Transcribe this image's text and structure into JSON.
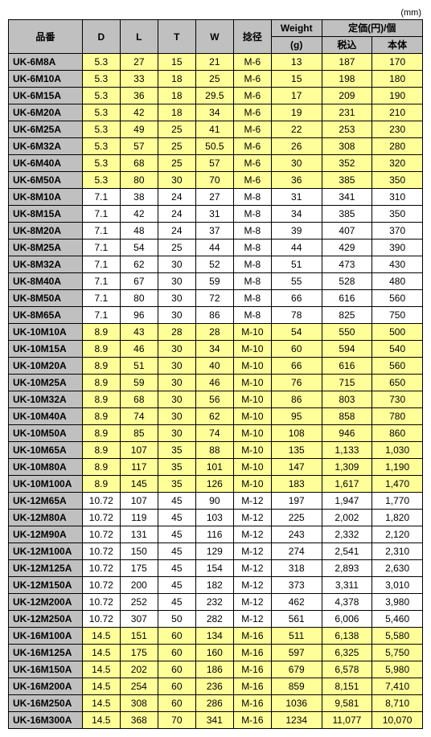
{
  "unit_label": "(mm)",
  "headers": {
    "part_no": "品番",
    "D": "D",
    "L": "L",
    "T": "T",
    "W": "W",
    "neji": "捻径",
    "weight_top": "Weight",
    "weight_bot": "(g)",
    "price_top": "定価(円)/個",
    "price_tax": "税込",
    "price_body": "本体"
  },
  "rows": [
    {
      "pn": "UK-6M8A",
      "d": "5.3",
      "l": "27",
      "t": "15",
      "w": "21",
      "nt": "M-6",
      "wg": "13",
      "p1": "187",
      "p2": "170",
      "band": "y"
    },
    {
      "pn": "UK-6M10A",
      "d": "5.3",
      "l": "33",
      "t": "18",
      "w": "25",
      "nt": "M-6",
      "wg": "15",
      "p1": "198",
      "p2": "180",
      "band": "y"
    },
    {
      "pn": "UK-6M15A",
      "d": "5.3",
      "l": "36",
      "t": "18",
      "w": "29.5",
      "nt": "M-6",
      "wg": "17",
      "p1": "209",
      "p2": "190",
      "band": "y"
    },
    {
      "pn": "UK-6M20A",
      "d": "5.3",
      "l": "42",
      "t": "18",
      "w": "34",
      "nt": "M-6",
      "wg": "19",
      "p1": "231",
      "p2": "210",
      "band": "y"
    },
    {
      "pn": "UK-6M25A",
      "d": "5.3",
      "l": "49",
      "t": "25",
      "w": "41",
      "nt": "M-6",
      "wg": "22",
      "p1": "253",
      "p2": "230",
      "band": "y"
    },
    {
      "pn": "UK-6M32A",
      "d": "5.3",
      "l": "57",
      "t": "25",
      "w": "50.5",
      "nt": "M-6",
      "wg": "26",
      "p1": "308",
      "p2": "280",
      "band": "y"
    },
    {
      "pn": "UK-6M40A",
      "d": "5.3",
      "l": "68",
      "t": "25",
      "w": "57",
      "nt": "M-6",
      "wg": "30",
      "p1": "352",
      "p2": "320",
      "band": "y"
    },
    {
      "pn": "UK-6M50A",
      "d": "5.3",
      "l": "80",
      "t": "30",
      "w": "70",
      "nt": "M-6",
      "wg": "36",
      "p1": "385",
      "p2": "350",
      "band": "y"
    },
    {
      "pn": "UK-8M10A",
      "d": "7.1",
      "l": "38",
      "t": "24",
      "w": "27",
      "nt": "M-8",
      "wg": "31",
      "p1": "341",
      "p2": "310",
      "band": "w"
    },
    {
      "pn": "UK-8M15A",
      "d": "7.1",
      "l": "42",
      "t": "24",
      "w": "31",
      "nt": "M-8",
      "wg": "34",
      "p1": "385",
      "p2": "350",
      "band": "w"
    },
    {
      "pn": "UK-8M20A",
      "d": "7.1",
      "l": "48",
      "t": "24",
      "w": "37",
      "nt": "M-8",
      "wg": "39",
      "p1": "407",
      "p2": "370",
      "band": "w"
    },
    {
      "pn": "UK-8M25A",
      "d": "7.1",
      "l": "54",
      "t": "25",
      "w": "44",
      "nt": "M-8",
      "wg": "44",
      "p1": "429",
      "p2": "390",
      "band": "w"
    },
    {
      "pn": "UK-8M32A",
      "d": "7.1",
      "l": "62",
      "t": "30",
      "w": "52",
      "nt": "M-8",
      "wg": "51",
      "p1": "473",
      "p2": "430",
      "band": "w"
    },
    {
      "pn": "UK-8M40A",
      "d": "7.1",
      "l": "67",
      "t": "30",
      "w": "59",
      "nt": "M-8",
      "wg": "55",
      "p1": "528",
      "p2": "480",
      "band": "w"
    },
    {
      "pn": "UK-8M50A",
      "d": "7.1",
      "l": "80",
      "t": "30",
      "w": "72",
      "nt": "M-8",
      "wg": "66",
      "p1": "616",
      "p2": "560",
      "band": "w"
    },
    {
      "pn": "UK-8M65A",
      "d": "7.1",
      "l": "96",
      "t": "30",
      "w": "86",
      "nt": "M-8",
      "wg": "78",
      "p1": "825",
      "p2": "750",
      "band": "w"
    },
    {
      "pn": "UK-10M10A",
      "d": "8.9",
      "l": "43",
      "t": "28",
      "w": "28",
      "nt": "M-10",
      "wg": "54",
      "p1": "550",
      "p2": "500",
      "band": "y"
    },
    {
      "pn": "UK-10M15A",
      "d": "8.9",
      "l": "46",
      "t": "30",
      "w": "34",
      "nt": "M-10",
      "wg": "60",
      "p1": "594",
      "p2": "540",
      "band": "y"
    },
    {
      "pn": "UK-10M20A",
      "d": "8.9",
      "l": "51",
      "t": "30",
      "w": "40",
      "nt": "M-10",
      "wg": "66",
      "p1": "616",
      "p2": "560",
      "band": "y"
    },
    {
      "pn": "UK-10M25A",
      "d": "8.9",
      "l": "59",
      "t": "30",
      "w": "46",
      "nt": "M-10",
      "wg": "76",
      "p1": "715",
      "p2": "650",
      "band": "y"
    },
    {
      "pn": "UK-10M32A",
      "d": "8.9",
      "l": "68",
      "t": "30",
      "w": "56",
      "nt": "M-10",
      "wg": "86",
      "p1": "803",
      "p2": "730",
      "band": "y"
    },
    {
      "pn": "UK-10M40A",
      "d": "8.9",
      "l": "74",
      "t": "30",
      "w": "62",
      "nt": "M-10",
      "wg": "95",
      "p1": "858",
      "p2": "780",
      "band": "y"
    },
    {
      "pn": "UK-10M50A",
      "d": "8.9",
      "l": "85",
      "t": "30",
      "w": "74",
      "nt": "M-10",
      "wg": "108",
      "p1": "946",
      "p2": "860",
      "band": "y"
    },
    {
      "pn": "UK-10M65A",
      "d": "8.9",
      "l": "107",
      "t": "35",
      "w": "88",
      "nt": "M-10",
      "wg": "135",
      "p1": "1,133",
      "p2": "1,030",
      "band": "y"
    },
    {
      "pn": "UK-10M80A",
      "d": "8.9",
      "l": "117",
      "t": "35",
      "w": "101",
      "nt": "M-10",
      "wg": "147",
      "p1": "1,309",
      "p2": "1,190",
      "band": "y"
    },
    {
      "pn": "UK-10M100A",
      "d": "8.9",
      "l": "145",
      "t": "35",
      "w": "126",
      "nt": "M-10",
      "wg": "183",
      "p1": "1,617",
      "p2": "1,470",
      "band": "y"
    },
    {
      "pn": "UK-12M65A",
      "d": "10.72",
      "l": "107",
      "t": "45",
      "w": "90",
      "nt": "M-12",
      "wg": "197",
      "p1": "1,947",
      "p2": "1,770",
      "band": "w"
    },
    {
      "pn": "UK-12M80A",
      "d": "10.72",
      "l": "119",
      "t": "45",
      "w": "103",
      "nt": "M-12",
      "wg": "225",
      "p1": "2,002",
      "p2": "1,820",
      "band": "w"
    },
    {
      "pn": "UK-12M90A",
      "d": "10.72",
      "l": "131",
      "t": "45",
      "w": "116",
      "nt": "M-12",
      "wg": "243",
      "p1": "2,332",
      "p2": "2,120",
      "band": "w"
    },
    {
      "pn": "UK-12M100A",
      "d": "10.72",
      "l": "150",
      "t": "45",
      "w": "129",
      "nt": "M-12",
      "wg": "274",
      "p1": "2,541",
      "p2": "2,310",
      "band": "w"
    },
    {
      "pn": "UK-12M125A",
      "d": "10.72",
      "l": "175",
      "t": "45",
      "w": "154",
      "nt": "M-12",
      "wg": "318",
      "p1": "2,893",
      "p2": "2,630",
      "band": "w"
    },
    {
      "pn": "UK-12M150A",
      "d": "10.72",
      "l": "200",
      "t": "45",
      "w": "182",
      "nt": "M-12",
      "wg": "373",
      "p1": "3,311",
      "p2": "3,010",
      "band": "w"
    },
    {
      "pn": "UK-12M200A",
      "d": "10.72",
      "l": "252",
      "t": "45",
      "w": "232",
      "nt": "M-12",
      "wg": "462",
      "p1": "4,378",
      "p2": "3,980",
      "band": "w"
    },
    {
      "pn": "UK-12M250A",
      "d": "10.72",
      "l": "307",
      "t": "50",
      "w": "282",
      "nt": "M-12",
      "wg": "561",
      "p1": "6,006",
      "p2": "5,460",
      "band": "w"
    },
    {
      "pn": "UK-16M100A",
      "d": "14.5",
      "l": "151",
      "t": "60",
      "w": "134",
      "nt": "M-16",
      "wg": "511",
      "p1": "6,138",
      "p2": "5,580",
      "band": "y"
    },
    {
      "pn": "UK-16M125A",
      "d": "14.5",
      "l": "175",
      "t": "60",
      "w": "160",
      "nt": "M-16",
      "wg": "597",
      "p1": "6,325",
      "p2": "5,750",
      "band": "y"
    },
    {
      "pn": "UK-16M150A",
      "d": "14.5",
      "l": "202",
      "t": "60",
      "w": "186",
      "nt": "M-16",
      "wg": "679",
      "p1": "6,578",
      "p2": "5,980",
      "band": "y"
    },
    {
      "pn": "UK-16M200A",
      "d": "14.5",
      "l": "254",
      "t": "60",
      "w": "236",
      "nt": "M-16",
      "wg": "859",
      "p1": "8,151",
      "p2": "7,410",
      "band": "y"
    },
    {
      "pn": "UK-16M250A",
      "d": "14.5",
      "l": "308",
      "t": "60",
      "w": "286",
      "nt": "M-16",
      "wg": "1036",
      "p1": "9,581",
      "p2": "8,710",
      "band": "y"
    },
    {
      "pn": "UK-16M300A",
      "d": "14.5",
      "l": "368",
      "t": "70",
      "w": "341",
      "nt": "M-16",
      "wg": "1234",
      "p1": "11,077",
      "p2": "10,070",
      "band": "y"
    }
  ]
}
